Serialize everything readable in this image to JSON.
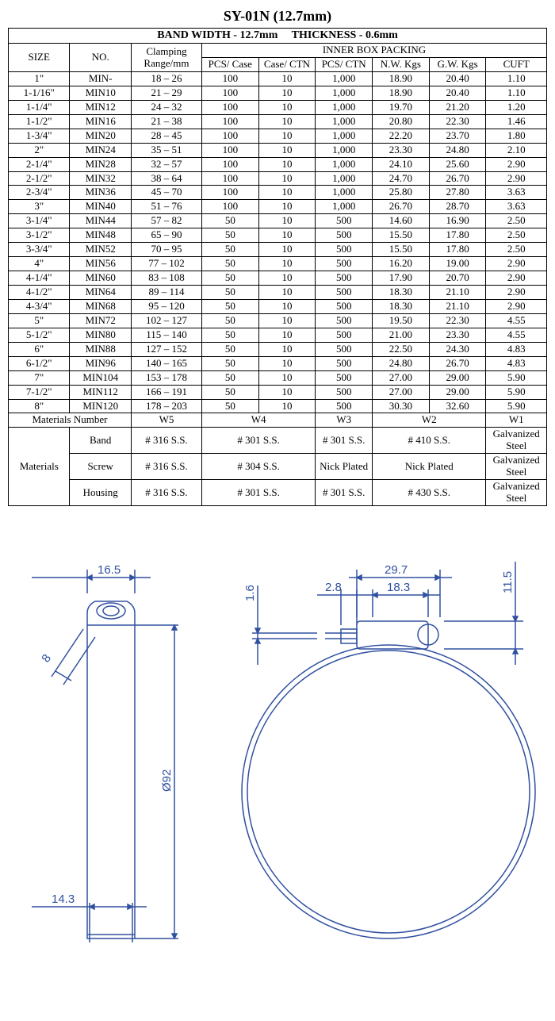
{
  "title": "SY-01N (12.7mm)",
  "band_header": "BAND WIDTH - 12.7mm     THICKNESS - 0.6mm",
  "headers": {
    "size": "SIZE",
    "no": "NO.",
    "clamping": "Clamping Range/mm",
    "inner_box": "INNER BOX PACKING",
    "pcs_case": "PCS/ Case",
    "case_ctn": "Case/ CTN",
    "pcs_ctn": "PCS/ CTN",
    "nw": "N.W. Kgs",
    "gw": "G.W. Kgs",
    "cuft": "CUFT"
  },
  "rows": [
    {
      "size": "1\"",
      "no": "MIN-",
      "range": "18 – 26",
      "pcs_case": "100",
      "case_ctn": "10",
      "pcs_ctn": "1,000",
      "nw": "18.90",
      "gw": "20.40",
      "cuft": "1.10"
    },
    {
      "size": "1-1/16\"",
      "no": "MIN10",
      "range": "21 – 29",
      "pcs_case": "100",
      "case_ctn": "10",
      "pcs_ctn": "1,000",
      "nw": "18.90",
      "gw": "20.40",
      "cuft": "1.10"
    },
    {
      "size": "1-1/4\"",
      "no": "MIN12",
      "range": "24 – 32",
      "pcs_case": "100",
      "case_ctn": "10",
      "pcs_ctn": "1,000",
      "nw": "19.70",
      "gw": "21.20",
      "cuft": "1.20"
    },
    {
      "size": "1-1/2\"",
      "no": "MIN16",
      "range": "21 – 38",
      "pcs_case": "100",
      "case_ctn": "10",
      "pcs_ctn": "1,000",
      "nw": "20.80",
      "gw": "22.30",
      "cuft": "1.46"
    },
    {
      "size": "1-3/4\"",
      "no": "MIN20",
      "range": "28 – 45",
      "pcs_case": "100",
      "case_ctn": "10",
      "pcs_ctn": "1,000",
      "nw": "22.20",
      "gw": "23.70",
      "cuft": "1.80"
    },
    {
      "size": "2\"",
      "no": "MIN24",
      "range": "35 – 51",
      "pcs_case": "100",
      "case_ctn": "10",
      "pcs_ctn": "1,000",
      "nw": "23.30",
      "gw": "24.80",
      "cuft": "2.10"
    },
    {
      "size": "2-1/4\"",
      "no": "MIN28",
      "range": "32 – 57",
      "pcs_case": "100",
      "case_ctn": "10",
      "pcs_ctn": "1,000",
      "nw": "24.10",
      "gw": "25.60",
      "cuft": "2.90"
    },
    {
      "size": "2-1/2\"",
      "no": "MIN32",
      "range": "38 – 64",
      "pcs_case": "100",
      "case_ctn": "10",
      "pcs_ctn": "1,000",
      "nw": "24.70",
      "gw": "26.70",
      "cuft": "2.90"
    },
    {
      "size": "2-3/4\"",
      "no": "MIN36",
      "range": "45 – 70",
      "pcs_case": "100",
      "case_ctn": "10",
      "pcs_ctn": "1,000",
      "nw": "25.80",
      "gw": "27.80",
      "cuft": "3.63"
    },
    {
      "size": "3\"",
      "no": "MIN40",
      "range": "51 – 76",
      "pcs_case": "100",
      "case_ctn": "10",
      "pcs_ctn": "1,000",
      "nw": "26.70",
      "gw": "28.70",
      "cuft": "3.63"
    },
    {
      "size": "3-1/4\"",
      "no": "MIN44",
      "range": "57 – 82",
      "pcs_case": "50",
      "case_ctn": "10",
      "pcs_ctn": "500",
      "nw": "14.60",
      "gw": "16.90",
      "cuft": "2.50"
    },
    {
      "size": "3-1/2\"",
      "no": "MIN48",
      "range": "65 – 90",
      "pcs_case": "50",
      "case_ctn": "10",
      "pcs_ctn": "500",
      "nw": "15.50",
      "gw": "17.80",
      "cuft": "2.50"
    },
    {
      "size": "3-3/4\"",
      "no": "MIN52",
      "range": "70 – 95",
      "pcs_case": "50",
      "case_ctn": "10",
      "pcs_ctn": "500",
      "nw": "15.50",
      "gw": "17.80",
      "cuft": "2.50"
    },
    {
      "size": "4\"",
      "no": "MIN56",
      "range": "77 – 102",
      "pcs_case": "50",
      "case_ctn": "10",
      "pcs_ctn": "500",
      "nw": "16.20",
      "gw": "19.00",
      "cuft": "2.90"
    },
    {
      "size": "4-1/4\"",
      "no": "MIN60",
      "range": "83 – 108",
      "pcs_case": "50",
      "case_ctn": "10",
      "pcs_ctn": "500",
      "nw": "17.90",
      "gw": "20.70",
      "cuft": "2.90"
    },
    {
      "size": "4-1/2\"",
      "no": "MIN64",
      "range": "89 – 114",
      "pcs_case": "50",
      "case_ctn": "10",
      "pcs_ctn": "500",
      "nw": "18.30",
      "gw": "21.10",
      "cuft": "2.90"
    },
    {
      "size": "4-3/4\"",
      "no": "MIN68",
      "range": "95 – 120",
      "pcs_case": "50",
      "case_ctn": "10",
      "pcs_ctn": "500",
      "nw": "18.30",
      "gw": "21.10",
      "cuft": "2.90"
    },
    {
      "size": "5\"",
      "no": "MIN72",
      "range": "102 – 127",
      "pcs_case": "50",
      "case_ctn": "10",
      "pcs_ctn": "500",
      "nw": "19.50",
      "gw": "22.30",
      "cuft": "4.55"
    },
    {
      "size": "5-1/2\"",
      "no": "MIN80",
      "range": "115 – 140",
      "pcs_case": "50",
      "case_ctn": "10",
      "pcs_ctn": "500",
      "nw": "21.00",
      "gw": "23.30",
      "cuft": "4.55"
    },
    {
      "size": "6\"",
      "no": "MIN88",
      "range": "127 – 152",
      "pcs_case": "50",
      "case_ctn": "10",
      "pcs_ctn": "500",
      "nw": "22.50",
      "gw": "24.30",
      "cuft": "4.83"
    },
    {
      "size": "6-1/2\"",
      "no": "MIN96",
      "range": "140 – 165",
      "pcs_case": "50",
      "case_ctn": "10",
      "pcs_ctn": "500",
      "nw": "24.80",
      "gw": "26.70",
      "cuft": "4.83"
    },
    {
      "size": "7\"",
      "no": "MIN104",
      "range": "153 – 178",
      "pcs_case": "50",
      "case_ctn": "10",
      "pcs_ctn": "500",
      "nw": "27.00",
      "gw": "29.00",
      "cuft": "5.90"
    },
    {
      "size": "7-1/2\"",
      "no": "MIN112",
      "range": "166 – 191",
      "pcs_case": "50",
      "case_ctn": "10",
      "pcs_ctn": "500",
      "nw": "27.00",
      "gw": "29.00",
      "cuft": "5.90"
    },
    {
      "size": "8\"",
      "no": "MIN120",
      "range": "178 – 203",
      "pcs_case": "50",
      "case_ctn": "10",
      "pcs_ctn": "500",
      "nw": "30.30",
      "gw": "32.60",
      "cuft": "5.90"
    }
  ],
  "materials_number_label": "Materials Number",
  "materials_label": "Materials",
  "material_cols": [
    "W5",
    "W4",
    "W3",
    "W2",
    "W1"
  ],
  "material_rows": [
    {
      "part": "Band",
      "vals": [
        "# 316 S.S.",
        "# 301 S.S.",
        "# 301 S.S.",
        "# 410 S.S.",
        "Galvanized Steel"
      ]
    },
    {
      "part": "Screw",
      "vals": [
        "# 316 S.S.",
        "# 304 S.S.",
        "Nick Plated",
        "Nick Plated",
        "Galvanized Steel"
      ]
    },
    {
      "part": "Housing",
      "vals": [
        "# 316 S.S.",
        "# 301 S.S.",
        "# 301 S.S.",
        "# 430 S.S.",
        "Galvanized Steel"
      ]
    }
  ],
  "diagram": {
    "stroke": "#3050a0",
    "dims": {
      "d1": "16.5",
      "d2": "8",
      "d3": "14.3",
      "d4": "Ø92",
      "d5": "1.6",
      "d6": "2.8",
      "d7": "29.7",
      "d8": "18.3",
      "d9": "11.5"
    }
  }
}
